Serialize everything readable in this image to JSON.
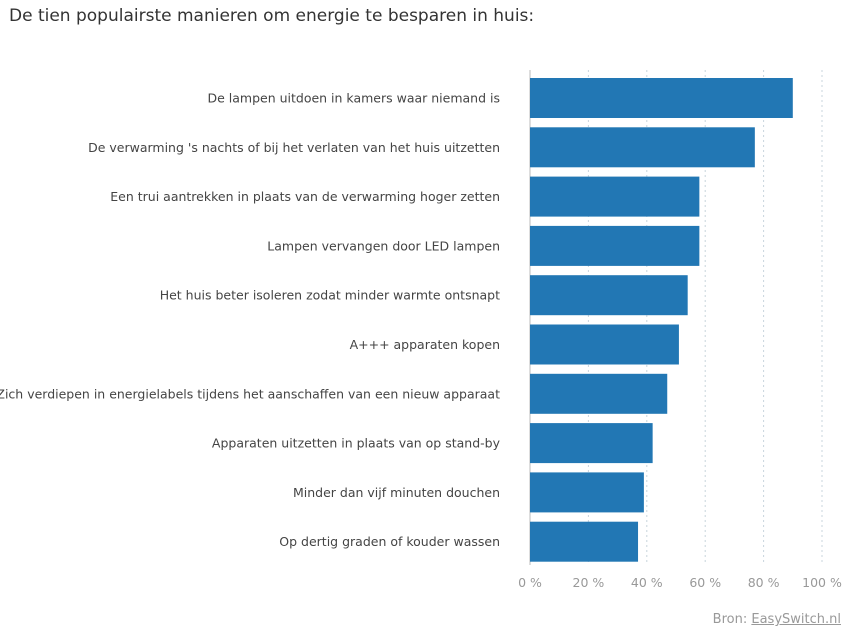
{
  "title": "De tien populairste manieren om energie te besparen in huis:",
  "source": {
    "prefix": "Bron:",
    "link": "EasySwitch.nl"
  },
  "chart_data": {
    "type": "bar",
    "orientation": "horizontal",
    "title": "De tien populairste manieren om energie te besparen in huis:",
    "categories": [
      "De lampen uitdoen in kamers waar niemand is",
      "De verwarming 's nachts of bij het verlaten van het huis uitzetten",
      "Een trui aantrekken in plaats van de verwarming hoger zetten",
      "Lampen vervangen door LED lampen",
      "Het huis beter isoleren zodat minder warmte ontsnapt",
      "A+++ apparaten kopen",
      "Zich verdiepen in energielabels tijdens het aanschaffen van een nieuw apparaat",
      "Apparaten uitzetten in plaats van op stand-by",
      "Minder dan vijf minuten douchen",
      "Op dertig graden of kouder wassen"
    ],
    "values": [
      90,
      77,
      58,
      58,
      54,
      51,
      47,
      42,
      39,
      37
    ],
    "xlim": [
      0,
      100
    ],
    "xticks": [
      0,
      20,
      40,
      60,
      80,
      100
    ],
    "xtick_labels": [
      "0 %",
      "20 %",
      "40 %",
      "60 %",
      "80 %",
      "100 %"
    ],
    "grid": "vertical dotted",
    "bar_color": "#2277b4"
  }
}
